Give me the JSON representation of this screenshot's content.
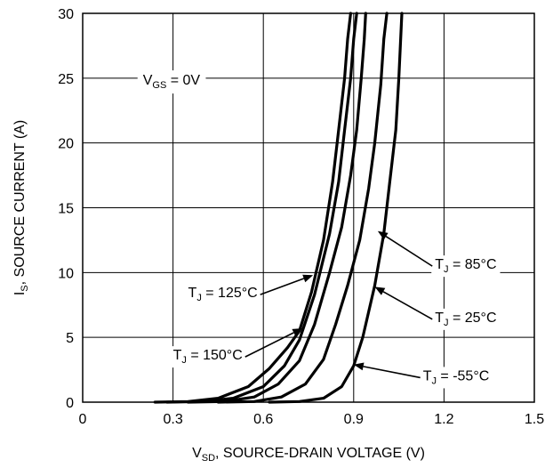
{
  "chart_data": {
    "type": "line",
    "xlabel": {
      "main": "V",
      "sub": "SD",
      "rest": ", SOURCE-DRAIN VOLTAGE (V)"
    },
    "ylabel": {
      "main": "I",
      "sub": "S",
      "rest": ", SOURCE CURRENT (A)"
    },
    "xlim": [
      0,
      1.5
    ],
    "ylim": [
      0,
      30
    ],
    "x_ticks": [
      "0",
      "0.3",
      "0.6",
      "0.9",
      "1.2",
      "1.5"
    ],
    "y_ticks": [
      "0",
      "5",
      "10",
      "15",
      "20",
      "25",
      "30"
    ],
    "grid": true,
    "condition": {
      "main": "V",
      "sub": "GS",
      "rest": " = 0V"
    },
    "series": [
      {
        "name": "T_J = 150°C",
        "label": {
          "main": "T",
          "sub": "J",
          "rest": " = 150°C"
        },
        "points": [
          [
            0.24,
            0
          ],
          [
            0.35,
            0.05
          ],
          [
            0.45,
            0.3
          ],
          [
            0.55,
            1.2
          ],
          [
            0.62,
            2.6
          ],
          [
            0.68,
            4.2
          ],
          [
            0.72,
            5.5
          ],
          [
            0.76,
            8.5
          ],
          [
            0.8,
            12.5
          ],
          [
            0.83,
            17
          ],
          [
            0.85,
            21
          ],
          [
            0.87,
            25
          ],
          [
            0.88,
            28
          ],
          [
            0.89,
            30
          ]
        ]
      },
      {
        "name": "T_J = 125°C",
        "label": {
          "main": "T",
          "sub": "J",
          "rest": " = 125°C"
        },
        "points": [
          [
            0.28,
            0
          ],
          [
            0.4,
            0.05
          ],
          [
            0.5,
            0.3
          ],
          [
            0.6,
            1.2
          ],
          [
            0.67,
            2.8
          ],
          [
            0.72,
            4.8
          ],
          [
            0.77,
            8.3
          ],
          [
            0.82,
            13
          ],
          [
            0.85,
            17
          ],
          [
            0.87,
            21
          ],
          [
            0.89,
            25
          ],
          [
            0.9,
            28
          ],
          [
            0.91,
            30
          ]
        ]
      },
      {
        "name": "T_J = 85°C",
        "label": {
          "main": "T",
          "sub": "J",
          "rest": " = 85°C"
        },
        "points": [
          [
            0.35,
            0
          ],
          [
            0.47,
            0.05
          ],
          [
            0.57,
            0.4
          ],
          [
            0.65,
            1.4
          ],
          [
            0.72,
            3.2
          ],
          [
            0.77,
            6
          ],
          [
            0.82,
            10
          ],
          [
            0.86,
            13.5
          ],
          [
            0.89,
            17.5
          ],
          [
            0.91,
            21
          ],
          [
            0.925,
            25
          ],
          [
            0.935,
            28
          ],
          [
            0.94,
            30
          ]
        ]
      },
      {
        "name": "T_J = 25°C",
        "label": {
          "main": "T",
          "sub": "J",
          "rest": " = 25°C"
        },
        "points": [
          [
            0.45,
            0
          ],
          [
            0.57,
            0.05
          ],
          [
            0.66,
            0.4
          ],
          [
            0.74,
            1.4
          ],
          [
            0.8,
            3.3
          ],
          [
            0.84,
            6
          ],
          [
            0.88,
            9
          ],
          [
            0.92,
            12.5
          ],
          [
            0.95,
            16.5
          ],
          [
            0.97,
            20
          ],
          [
            0.99,
            24.5
          ],
          [
            1.0,
            28
          ],
          [
            1.01,
            30
          ]
        ]
      },
      {
        "name": "T_J = -55°C",
        "label": {
          "main": "T",
          "sub": "J",
          "rest": " = -55°C"
        },
        "points": [
          [
            0.62,
            0
          ],
          [
            0.72,
            0.05
          ],
          [
            0.8,
            0.3
          ],
          [
            0.86,
            1.2
          ],
          [
            0.9,
            2.8
          ],
          [
            0.93,
            5
          ],
          [
            0.97,
            9
          ],
          [
            1.0,
            13
          ],
          [
            1.02,
            17
          ],
          [
            1.04,
            21
          ],
          [
            1.05,
            25
          ],
          [
            1.06,
            30
          ]
        ]
      }
    ],
    "annotations": [
      {
        "series": 4,
        "label_x": 1.13,
        "label_y": 2.1,
        "target_x": 0.9,
        "target_y": 2.9
      },
      {
        "series": 3,
        "label_x": 1.17,
        "label_y": 6.6,
        "target_x": 0.97,
        "target_y": 8.9
      },
      {
        "series": 2,
        "label_x": 1.17,
        "label_y": 10.7,
        "target_x": 0.98,
        "target_y": 13.2
      },
      {
        "series": 1,
        "label_x": 0.35,
        "label_y": 8.5,
        "target_x": 0.765,
        "target_y": 9.8
      },
      {
        "series": 0,
        "label_x": 0.3,
        "label_y": 3.7,
        "target_x": 0.73,
        "target_y": 5.7
      }
    ]
  }
}
